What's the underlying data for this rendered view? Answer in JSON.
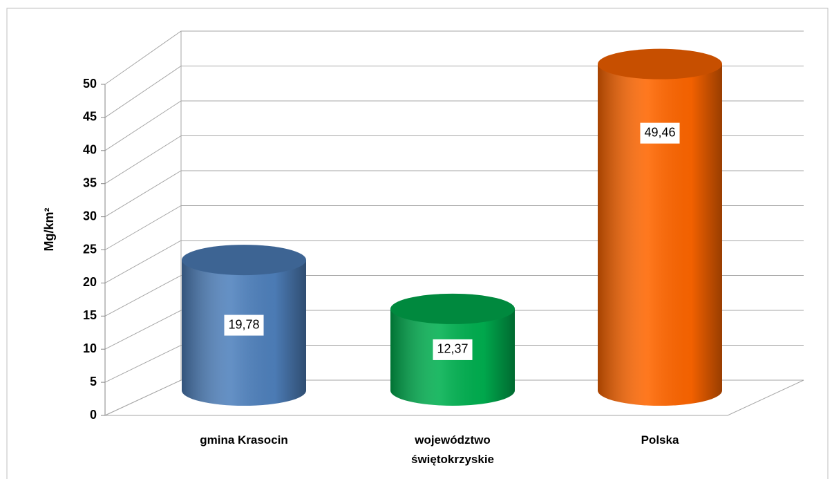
{
  "chart_data": {
    "type": "bar3d",
    "y_label": "Mg/km²",
    "categories": [
      "gmina Krasocin",
      "województwo świętokrzyskie",
      "Polska"
    ],
    "values": [
      19.78,
      12.37,
      49.46
    ],
    "value_labels": [
      "19,78",
      "12,37",
      "49,46"
    ],
    "colors": [
      "#4f81bd",
      "#00b050",
      "#ff6600"
    ],
    "ylim": [
      0,
      50
    ],
    "yticks": [
      0,
      5,
      10,
      15,
      20,
      25,
      30,
      35,
      40,
      45,
      50
    ],
    "grid": true
  }
}
